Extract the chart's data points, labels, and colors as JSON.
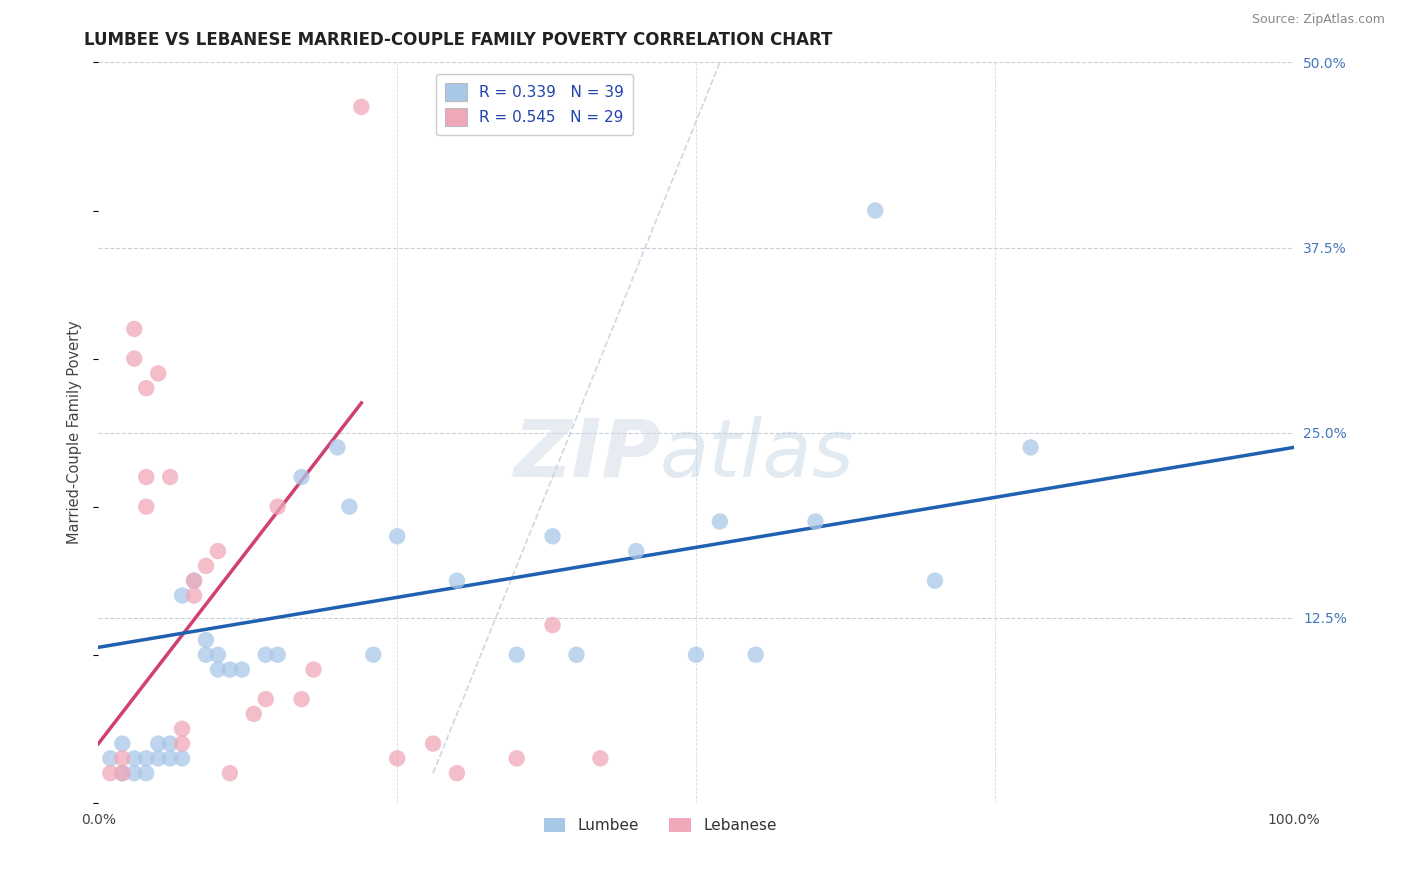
{
  "title": "LUMBEE VS LEBANESE MARRIED-COUPLE FAMILY POVERTY CORRELATION CHART",
  "source": "Source: ZipAtlas.com",
  "ylabel": "Married-Couple Family Poverty",
  "xlim": [
    0,
    100
  ],
  "ylim": [
    0,
    50
  ],
  "lumbee_color": "#a8c8e8",
  "lebanese_color": "#f0a8b8",
  "lumbee_line_color": "#2060b0",
  "lebanese_line_color": "#d04070",
  "dash_color": "#c8ccd8",
  "background_color": "#ffffff",
  "lumbee_x": [
    1,
    2,
    2,
    3,
    3,
    4,
    4,
    5,
    5,
    6,
    6,
    7,
    7,
    8,
    9,
    9,
    10,
    10,
    11,
    12,
    14,
    15,
    17,
    20,
    21,
    23,
    25,
    30,
    35,
    38,
    40,
    45,
    50,
    52,
    55,
    60,
    65,
    70,
    78
  ],
  "lumbee_y": [
    3,
    2,
    4,
    2,
    3,
    3,
    2,
    4,
    3,
    4,
    3,
    3,
    14,
    15,
    11,
    10,
    10,
    9,
    9,
    9,
    10,
    10,
    22,
    24,
    20,
    10,
    18,
    15,
    10,
    18,
    10,
    17,
    10,
    19,
    10,
    19,
    40,
    15,
    24
  ],
  "lebanese_x": [
    1,
    2,
    2,
    3,
    3,
    4,
    4,
    4,
    5,
    6,
    7,
    7,
    8,
    8,
    9,
    10,
    11,
    13,
    14,
    15,
    17,
    18,
    22,
    25,
    28,
    30,
    35,
    38,
    42
  ],
  "lebanese_y": [
    2,
    2,
    3,
    32,
    30,
    28,
    22,
    20,
    29,
    22,
    4,
    5,
    15,
    14,
    16,
    17,
    2,
    6,
    7,
    20,
    7,
    9,
    47,
    3,
    4,
    2,
    3,
    12,
    3
  ],
  "lumbee_line_x0": 0,
  "lumbee_line_y0": 10.5,
  "lumbee_line_x1": 100,
  "lumbee_line_y1": 24.0,
  "lebanese_line_x0": 0,
  "lebanese_line_y0": 4.0,
  "lebanese_line_x1": 22,
  "lebanese_line_y1": 27.0,
  "dash_line_x0": 28,
  "dash_line_y0": 2,
  "dash_line_x1": 52,
  "dash_line_y1": 50
}
